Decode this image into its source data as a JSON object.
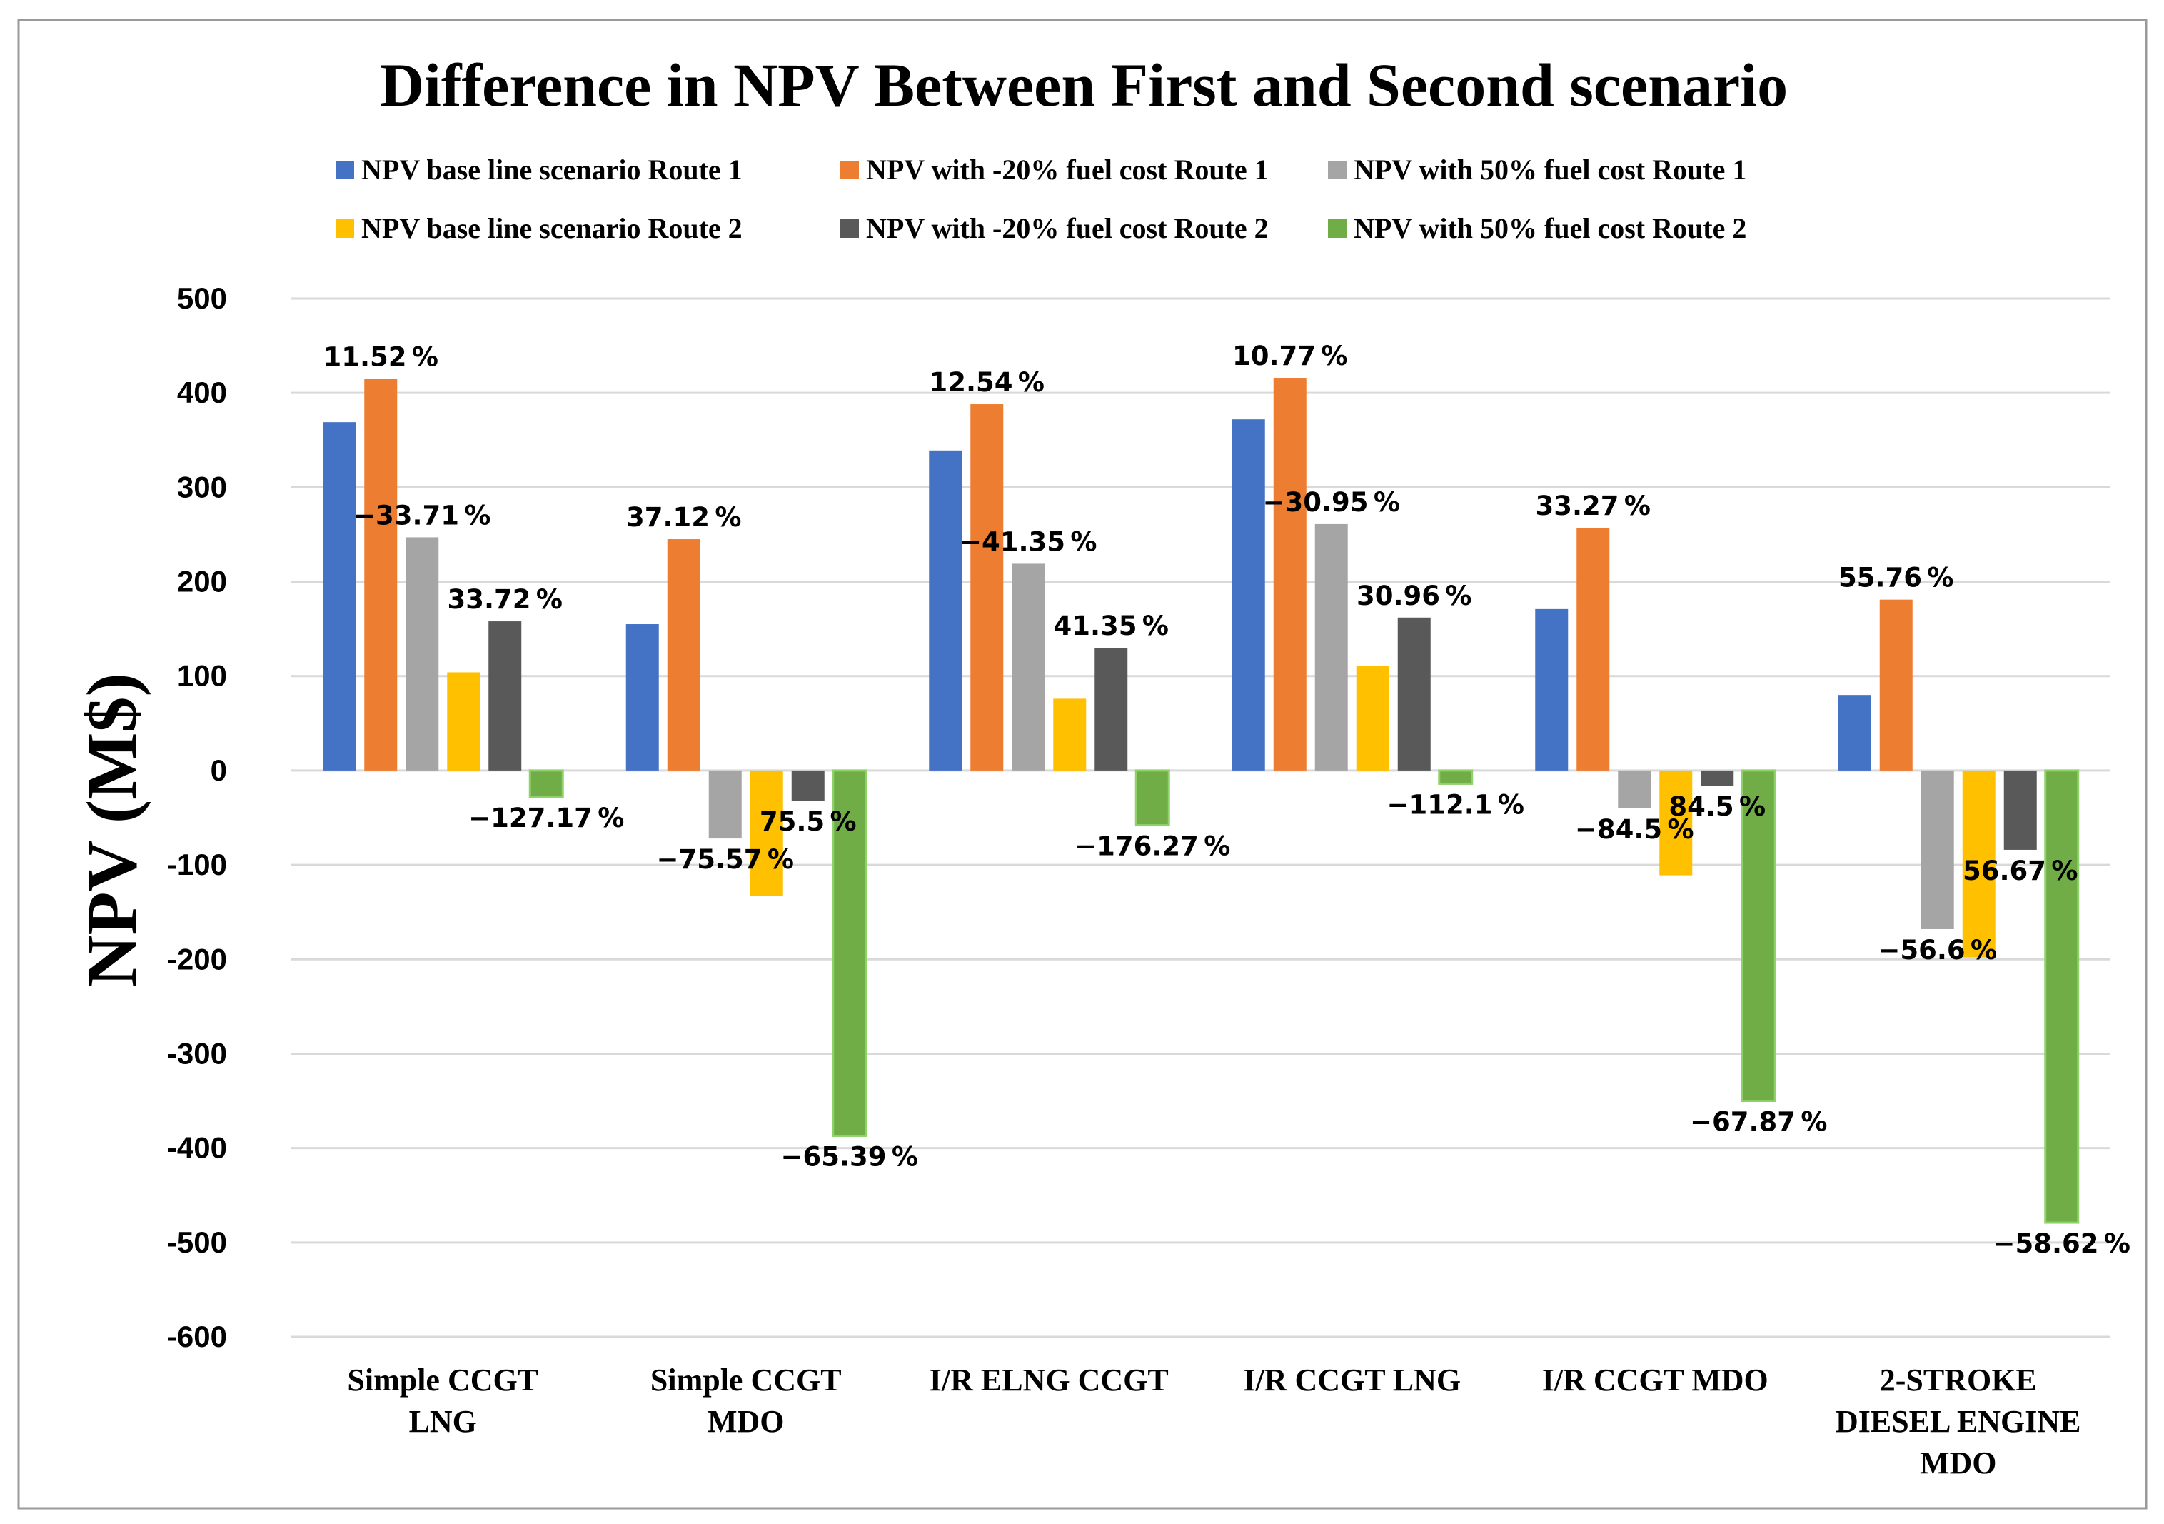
{
  "chart_data": {
    "type": "bar",
    "title": "Difference in NPV Between First and Second scenario",
    "xlabel": "",
    "ylabel": "NPV (M$)",
    "ylim": [
      -600,
      500
    ],
    "ytick_step": 100,
    "grid": true,
    "legend_position": "top",
    "categories": [
      [
        "Simple CCGT",
        "LNG"
      ],
      [
        "Simple CCGT",
        "MDO"
      ],
      [
        "I/R ELNG CCGT"
      ],
      [
        "I/R CCGT  LNG"
      ],
      [
        "I/R CCGT  MDO"
      ],
      [
        "2-STROKE",
        "DIESEL ENGINE",
        "MDO"
      ]
    ],
    "series": [
      {
        "name": "NPV base line scenario Route 1",
        "color": "#4472c4",
        "values": [
          369,
          155,
          339,
          372,
          171,
          80
        ]
      },
      {
        "name": "NPV with -20% fuel cost Route 1",
        "color": "#ed7d31",
        "values": [
          415,
          245,
          388,
          416,
          257,
          181
        ]
      },
      {
        "name": "NPV with 50% fuel cost Route 1",
        "color": "#a5a5a5",
        "values": [
          247,
          -72,
          219,
          261,
          -40,
          -168
        ]
      },
      {
        "name": "NPV base line scenario Route 2",
        "color": "#ffc000",
        "values": [
          104,
          -133,
          76,
          111,
          -111,
          -198
        ]
      },
      {
        "name": "NPV with -20% fuel cost  Route 2",
        "color": "#595959",
        "values": [
          158,
          -32,
          130,
          162,
          -16,
          -84
        ]
      },
      {
        "name": "NPV with 50% fuel cost  Route 2",
        "color": "#70ad47",
        "values": [
          -28,
          -387,
          -58,
          -14,
          -350,
          -479
        ]
      }
    ],
    "annotations": [
      {
        "category": 0,
        "series": 1,
        "text": "11.52 %"
      },
      {
        "category": 0,
        "series": 2,
        "text": "−33.71 %"
      },
      {
        "category": 0,
        "series": 4,
        "text": "33.72 %"
      },
      {
        "category": 0,
        "series": 5,
        "text": "−127.17 %"
      },
      {
        "category": 1,
        "series": 1,
        "text": "37.12 %"
      },
      {
        "category": 1,
        "series": 2,
        "text": "−75.57 %"
      },
      {
        "category": 1,
        "series": 4,
        "text": "75.5 %"
      },
      {
        "category": 1,
        "series": 5,
        "text": "−65.39 %"
      },
      {
        "category": 2,
        "series": 1,
        "text": "12.54 %"
      },
      {
        "category": 2,
        "series": 2,
        "text": "−41.35 %"
      },
      {
        "category": 2,
        "series": 4,
        "text": "41.35 %"
      },
      {
        "category": 2,
        "series": 5,
        "text": "−176.27 %"
      },
      {
        "category": 3,
        "series": 1,
        "text": "10.77 %"
      },
      {
        "category": 3,
        "series": 2,
        "text": "−30.95 %"
      },
      {
        "category": 3,
        "series": 4,
        "text": "30.96 %"
      },
      {
        "category": 3,
        "series": 5,
        "text": "−112.1 %"
      },
      {
        "category": 4,
        "series": 1,
        "text": "33.27 %"
      },
      {
        "category": 4,
        "series": 2,
        "text": "−84.5 %"
      },
      {
        "category": 4,
        "series": 4,
        "text": "84.5 %"
      },
      {
        "category": 4,
        "series": 5,
        "text": "−67.87 %"
      },
      {
        "category": 5,
        "series": 1,
        "text": "55.76 %"
      },
      {
        "category": 5,
        "series": 2,
        "text": "−56.6 %"
      },
      {
        "category": 5,
        "series": 4,
        "text": "56.67 %"
      },
      {
        "category": 5,
        "series": 5,
        "text": "−58.62 %"
      }
    ]
  }
}
